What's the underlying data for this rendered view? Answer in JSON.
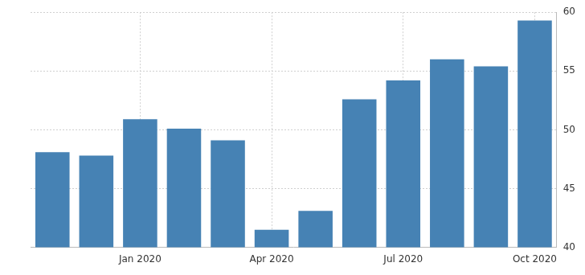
{
  "chart_data": {
    "type": "bar",
    "categories": [
      null,
      null,
      "Jan 2020",
      null,
      null,
      "Apr 2020",
      null,
      null,
      "Jul 2020",
      null,
      null,
      "Oct 2020"
    ],
    "values": [
      48.1,
      47.8,
      50.9,
      50.1,
      49.1,
      41.5,
      43.1,
      52.6,
      54.2,
      56.0,
      55.4,
      59.3
    ],
    "color": "#4682b4",
    "ylim": [
      40,
      60
    ],
    "yticks": [
      40,
      45,
      50,
      55,
      60
    ],
    "grid": true
  }
}
